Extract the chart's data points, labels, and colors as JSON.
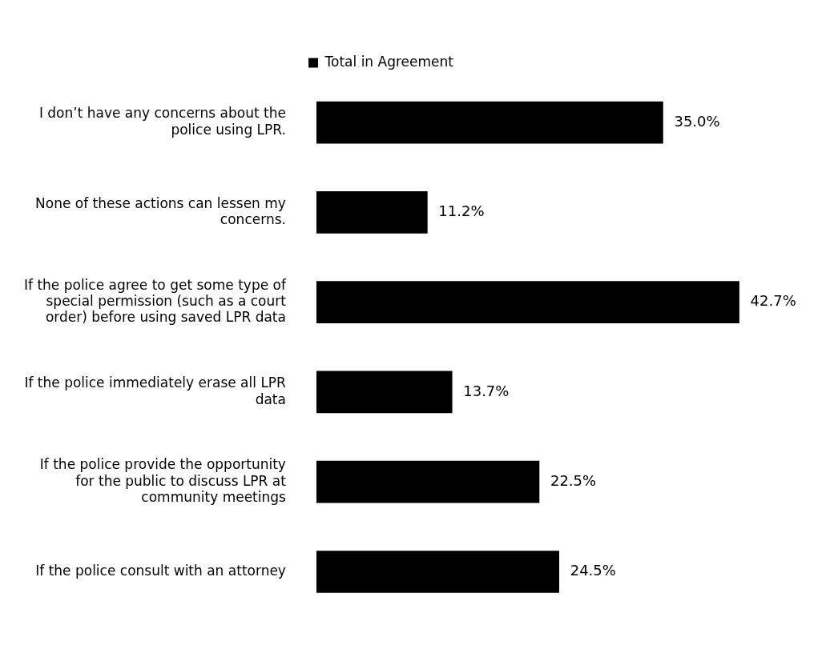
{
  "chart_data": {
    "type": "bar",
    "orientation": "horizontal",
    "legend": "top",
    "categories": [
      "I don’t have any concerns about the police using LPR.",
      "None of these actions can lessen my concerns.",
      "If the police agree to get some type of special permission (such as a court order) before using saved LPR data",
      "If the police immediately erase all LPR data",
      "If the police provide the opportunity for the public to discuss LPR at community meetings",
      "If the police consult with an attorney"
    ],
    "series": [
      {
        "name": "Total in Agreement",
        "color": "#000000",
        "values": [
          35.0,
          11.2,
          42.7,
          13.7,
          22.5,
          24.5
        ],
        "value_labels": [
          "35.0%",
          "11.2%",
          "42.7%",
          "13.7%",
          "22.5%",
          "24.5%"
        ]
      }
    ],
    "grid": false
  }
}
